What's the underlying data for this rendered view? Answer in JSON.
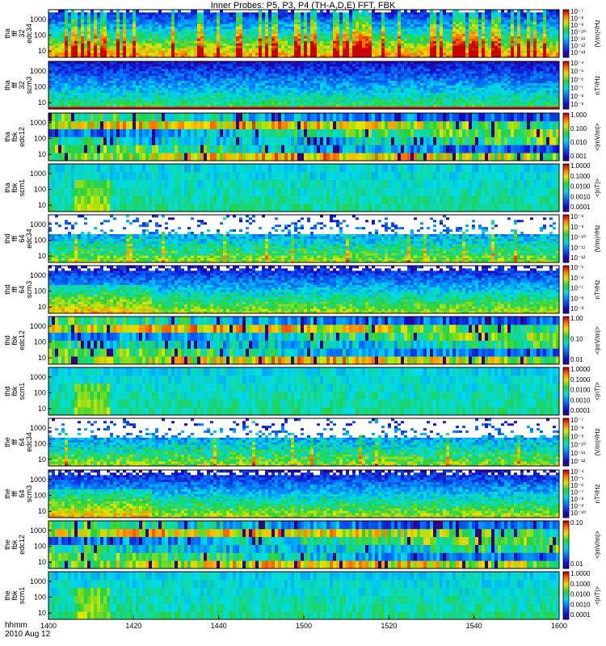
{
  "title": "Inner Probes: P5, P3, P4 (TH-A,D,E) FFT, FBK",
  "footer": {
    "hhmm": "hhmm",
    "date": "2010 Aug 12"
  },
  "chart_data": {
    "type": "heatmap",
    "title": "Inner Probes: P5, P3, P4 (TH-A,D,E) FFT, FBK",
    "x_ticks": [
      "1400",
      "1420",
      "1440",
      "1500",
      "1520",
      "1540",
      "1600"
    ],
    "x_range": [
      "1400",
      "1600"
    ],
    "panels": [
      {
        "label": [
          "tha",
          "fff",
          "32",
          "edc34"
        ],
        "yticks": [
          "1000",
          "100",
          "10"
        ],
        "unit": "(V/m)²/Hz",
        "cticks": [
          "10⁻⁷",
          "10⁻⁸",
          "10⁻⁹",
          "10⁻¹⁰",
          "10⁻¹¹",
          "10⁻¹²",
          "10⁻¹³"
        ],
        "kind": "ffte"
      },
      {
        "label": [
          "tha",
          "fff",
          "32",
          "scm3"
        ],
        "yticks": [
          "1000",
          "100",
          "10"
        ],
        "unit": "nT²/Hz",
        "cticks": [
          "10⁻⁴",
          "10⁻⁵",
          "10⁻⁶",
          "10⁻⁷",
          "10⁻⁸",
          "10⁻⁹"
        ],
        "kind": "fftb"
      },
      {
        "label": [
          "tha",
          "fbk",
          "edc12"
        ],
        "yticks": [
          "1000",
          "100",
          "10"
        ],
        "unit": "<|mV/m|>",
        "cticks": [
          "1.000",
          "0.100",
          "0.010",
          "0.001"
        ],
        "kind": "fbke"
      },
      {
        "label": [
          "tha",
          "fbk",
          "scm1"
        ],
        "yticks": [
          "1000",
          "100",
          "10"
        ],
        "unit": "<|nT|>",
        "cticks": [
          "1.0000",
          "0.1000",
          "0.0100",
          "0.0010",
          "0.0001"
        ],
        "kind": "fbkb"
      },
      {
        "label": [
          "thd",
          "fff",
          "64",
          "edc34"
        ],
        "yticks": [
          "1000",
          "100",
          "10"
        ],
        "unit": "(V/m)²/Hz",
        "cticks": [
          "10⁻⁸",
          "10⁻⁹",
          "10⁻¹⁰",
          "10⁻¹¹",
          "10⁻¹²"
        ],
        "kind": "ffte2"
      },
      {
        "label": [
          "thd",
          "fff",
          "64",
          "scm3"
        ],
        "yticks": [
          "1000",
          "100",
          "10"
        ],
        "unit": "nT²/Hz",
        "cticks": [
          "10⁻⁵",
          "10⁻⁶",
          "10⁻⁷",
          "10⁻⁸",
          "10⁻⁹"
        ],
        "kind": "fftb2"
      },
      {
        "label": [
          "thd",
          "fbk",
          "edc12"
        ],
        "yticks": [
          "1000",
          "100",
          "10"
        ],
        "unit": "<|mV/m|>",
        "cticks": [
          "1.00",
          "0.10",
          "0.01"
        ],
        "kind": "fbke"
      },
      {
        "label": [
          "thd",
          "fbk",
          "scm1"
        ],
        "yticks": [
          "1000",
          "100",
          "10"
        ],
        "unit": "<|nT|>",
        "cticks": [
          "1.0000",
          "0.1000",
          "0.0100",
          "0.0010",
          "0.0001"
        ],
        "kind": "fbkb"
      },
      {
        "label": [
          "the",
          "fff",
          "64",
          "edc34"
        ],
        "yticks": [
          "1000",
          "100",
          "10"
        ],
        "unit": "(V/m)²/Hz",
        "cticks": [
          "10⁻⁷",
          "10⁻⁸",
          "10⁻⁹",
          "10⁻¹⁰",
          "10⁻¹¹",
          "10⁻¹²"
        ],
        "kind": "ffte2"
      },
      {
        "label": [
          "the",
          "fff",
          "64",
          "scm3"
        ],
        "yticks": [
          "1000",
          "100",
          "10"
        ],
        "unit": "nT²/Hz",
        "cticks": [
          "10⁻⁴",
          "10⁻⁵",
          "10⁻⁶",
          "10⁻⁷",
          "10⁻⁸",
          "10⁻⁹",
          "10⁻¹⁰"
        ],
        "kind": "fftb2"
      },
      {
        "label": [
          "the",
          "fbk",
          "edc12"
        ],
        "yticks": [
          "1000",
          "100",
          "10"
        ],
        "unit": "<|mV/m|>",
        "cticks": [
          "0.10",
          "0.01"
        ],
        "kind": "fbke"
      },
      {
        "label": [
          "the",
          "fbk",
          "scm1"
        ],
        "yticks": [
          "1000",
          "100",
          "10"
        ],
        "unit": "<|nT|>",
        "cticks": [
          "1.0000",
          "0.1000",
          "0.0100",
          "0.0010",
          "0.0001"
        ],
        "kind": "fbkb"
      }
    ]
  }
}
